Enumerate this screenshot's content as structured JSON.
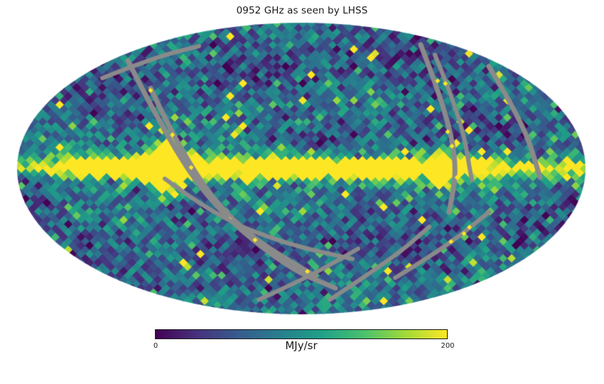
{
  "background": "#ffffff",
  "chart_data": {
    "type": "heatmap",
    "projection": "mollweide",
    "title": "0952 GHz as seen by LHSS",
    "units": "MJy/sr",
    "value_range": [
      0,
      200
    ],
    "colorbar": {
      "tick_labels": [
        "0",
        "200"
      ],
      "label": "MJy/sr",
      "orientation": "horizontal"
    },
    "colormap": {
      "name": "viridis",
      "stops": [
        "#440154",
        "#46327e",
        "#365c8d",
        "#277f8e",
        "#1fa187",
        "#4ac16d",
        "#a0da39",
        "#fde725"
      ]
    },
    "masked_stripe_color": "#8a8a8a",
    "description": "All-sky HEALPix-style diamond-pixel map; saturated yellow galactic plane along the equator with a wide bulge left of center and a bright knot right of center, teal-blue noisy background 20-120 MJy/sr, scattered bright point sources, and gray masked scan-path stripes arcing across the sky.",
    "map": {
      "seed": 42,
      "pixel_half_diagonal": 6,
      "background_base": 22,
      "background_spread": 88,
      "plane": {
        "amplitude": 420,
        "base_half_width": 0.048,
        "bulges": [
          {
            "u": -0.47,
            "extra_width": 0.09,
            "sigma": 0.07
          },
          {
            "u": 0.5,
            "extra_width": 0.045,
            "sigma": 0.045
          }
        ],
        "extent_center": -0.08,
        "extent_scale": 0.72,
        "glow_amplitude": 55,
        "glow_width": 0.14,
        "ridge_amplitude": 92,
        "ridge_half_width": 0.045
      },
      "stripes": [
        {
          "width": 7,
          "specks": false,
          "points": [
            [
              -0.61,
              -0.74
            ],
            [
              -0.47,
              -0.2
            ],
            [
              -0.3,
              0.28
            ],
            [
              -0.05,
              0.68
            ],
            [
              0.12,
              0.82
            ]
          ]
        },
        {
          "width": 7,
          "specks": true,
          "points": [
            [
              -0.53,
              -0.55
            ],
            [
              -0.41,
              -0.05
            ],
            [
              -0.22,
              0.42
            ],
            [
              0.05,
              0.74
            ]
          ]
        },
        {
          "width": 6,
          "specks": false,
          "points": [
            [
              -0.7,
              -0.62
            ],
            [
              -0.52,
              -0.76
            ],
            [
              -0.36,
              -0.84
            ]
          ]
        },
        {
          "width": 6,
          "specks": false,
          "points": [
            [
              -0.48,
              0.07
            ],
            [
              -0.3,
              0.33
            ],
            [
              -0.05,
              0.52
            ],
            [
              0.18,
              0.62
            ]
          ]
        },
        {
          "width": 7,
          "specks": true,
          "points": [
            [
              0.42,
              -0.85
            ],
            [
              0.5,
              -0.45
            ],
            [
              0.55,
              -0.02
            ],
            [
              0.52,
              0.3
            ]
          ]
        },
        {
          "width": 6,
          "specks": true,
          "points": [
            [
              0.47,
              -0.78
            ],
            [
              0.56,
              -0.36
            ],
            [
              0.6,
              0.08
            ]
          ]
        },
        {
          "width": 7,
          "specks": false,
          "points": [
            [
              0.66,
              -0.7
            ],
            [
              0.78,
              -0.32
            ],
            [
              0.84,
              0.06
            ]
          ]
        },
        {
          "width": 6,
          "specks": false,
          "points": [
            [
              0.1,
              0.9
            ],
            [
              0.32,
              0.62
            ],
            [
              0.45,
              0.4
            ]
          ]
        },
        {
          "width": 6,
          "specks": true,
          "points": [
            [
              0.33,
              0.75
            ],
            [
              0.5,
              0.55
            ],
            [
              0.66,
              0.3
            ]
          ]
        },
        {
          "width": 6,
          "specks": false,
          "points": [
            [
              -0.15,
              0.9
            ],
            [
              0.02,
              0.75
            ],
            [
              0.2,
              0.55
            ]
          ]
        }
      ],
      "speck_color": "#fde725",
      "speck_rate": 0.3
    }
  }
}
